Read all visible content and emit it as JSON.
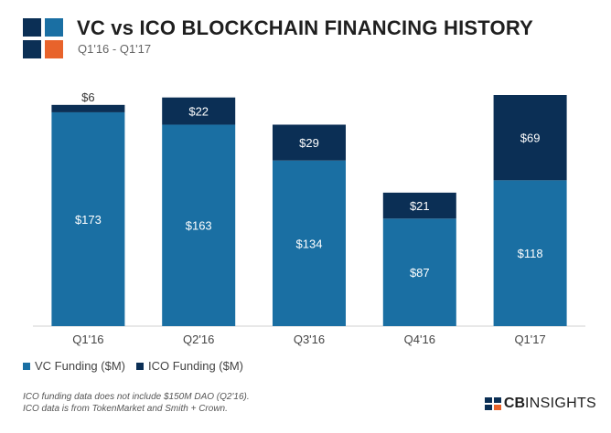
{
  "header": {
    "title": "VC vs ICO BLOCKCHAIN FINANCING HISTORY",
    "subtitle": "Q1'16 - Q1'17"
  },
  "legend": {
    "vc": "VC Funding ($M)",
    "ico": "ICO Funding ($M)"
  },
  "footnote": {
    "line1": "ICO funding data does not include $150M DAO (Q2'16).",
    "line2": "ICO data is from TokenMarket and Smith + Crown."
  },
  "brand": {
    "cb": "CB",
    "insights": "INSIGHTS"
  },
  "colors": {
    "vc": "#1a6fa3",
    "ico": "#0b2f55",
    "logo_orange": "#e8632b"
  },
  "chart_data": {
    "type": "bar",
    "stacked": true,
    "categories": [
      "Q1'16",
      "Q2'16",
      "Q3'16",
      "Q4'16",
      "Q1'17"
    ],
    "series": [
      {
        "name": "VC Funding ($M)",
        "values": [
          173,
          163,
          134,
          87,
          118
        ],
        "labels": [
          "$173",
          "$163",
          "$134",
          "$87",
          "$118"
        ]
      },
      {
        "name": "ICO Funding ($M)",
        "values": [
          6,
          22,
          29,
          21,
          69
        ],
        "labels": [
          "$6",
          "$22",
          "$29",
          "$21",
          "$69"
        ]
      }
    ],
    "ylim": [
      0,
      187
    ],
    "grid": false,
    "legend": "bottom-left"
  }
}
